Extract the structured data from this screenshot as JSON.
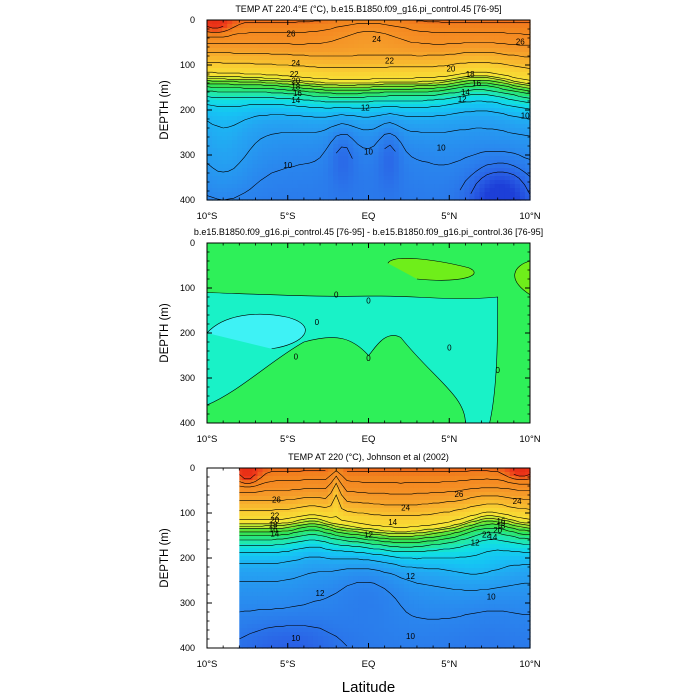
{
  "figure": {
    "xlabel": "Latitude",
    "ylabel": "DEPTH (m)"
  },
  "chart_data": [
    {
      "type": "contour",
      "title": "TEMP AT 220.4°E (°C), b.e15.B1850.f09_g16.pi_control.45 [76-95]",
      "xlabel": "Latitude",
      "ylabel": "DEPTH (m)",
      "x_ticks": [
        "10°S",
        "5°S",
        "EQ",
        "5°N",
        "10°N"
      ],
      "x_tick_values": [
        -10,
        -5,
        0,
        5,
        10
      ],
      "y_ticks": [
        "0",
        "100",
        "200",
        "300",
        "400"
      ],
      "y_tick_values": [
        0,
        100,
        200,
        300,
        400
      ],
      "xlim": [
        -10,
        10
      ],
      "ylim": [
        0,
        400
      ],
      "y_inverted": true,
      "x_data_range": [
        -10,
        10
      ],
      "contour_labels": [
        "26",
        "24",
        "26",
        "24",
        "22",
        "20",
        "18",
        "16",
        "14",
        "12",
        "22",
        "20",
        "18",
        "16",
        "14",
        "12",
        "10",
        "10",
        "10",
        "10"
      ],
      "depth_profile_equator": {
        "depth_m": [
          0,
          50,
          100,
          150,
          200,
          300,
          400
        ],
        "temp_c": [
          25.5,
          24.5,
          21,
          14,
          11.5,
          10,
          8
        ]
      }
    },
    {
      "type": "contour",
      "title": "b.e15.B1850.f09_g16.pi_control.45 [76-95] - b.e15.B1850.f09_g16.pi_control.36 [76-95]",
      "xlabel": "Latitude",
      "ylabel": "DEPTH (m)",
      "x_ticks": [
        "10°S",
        "5°S",
        "EQ",
        "5°N",
        "10°N"
      ],
      "x_tick_values": [
        -10,
        -5,
        0,
        5,
        10
      ],
      "y_ticks": [
        "0",
        "100",
        "200",
        "300",
        "400"
      ],
      "y_tick_values": [
        0,
        100,
        200,
        300,
        400
      ],
      "xlim": [
        -10,
        10
      ],
      "ylim": [
        0,
        400
      ],
      "y_inverted": true,
      "x_data_range": [
        -10,
        10
      ],
      "contour_labels": [
        "0",
        "0",
        "0",
        "0",
        "0",
        "0",
        "0"
      ]
    },
    {
      "type": "contour",
      "title": "TEMP AT 220 (°C), Johnson et al (2002)",
      "xlabel": "Latitude",
      "ylabel": "DEPTH (m)",
      "x_ticks": [
        "10°S",
        "5°S",
        "EQ",
        "5°N",
        "10°N"
      ],
      "x_tick_values": [
        -10,
        -5,
        0,
        5,
        10
      ],
      "y_ticks": [
        "0",
        "100",
        "200",
        "300",
        "400"
      ],
      "y_tick_values": [
        0,
        100,
        200,
        300,
        400
      ],
      "xlim": [
        -10,
        10
      ],
      "ylim": [
        0,
        400
      ],
      "y_inverted": true,
      "x_data_range": [
        -8,
        10
      ],
      "contour_labels": [
        "26",
        "24",
        "26",
        "24",
        "22",
        "20",
        "18",
        "16",
        "14",
        "14",
        "12",
        "22",
        "20",
        "18",
        "16",
        "14",
        "12",
        "12",
        "12",
        "10",
        "10",
        "10"
      ]
    }
  ]
}
